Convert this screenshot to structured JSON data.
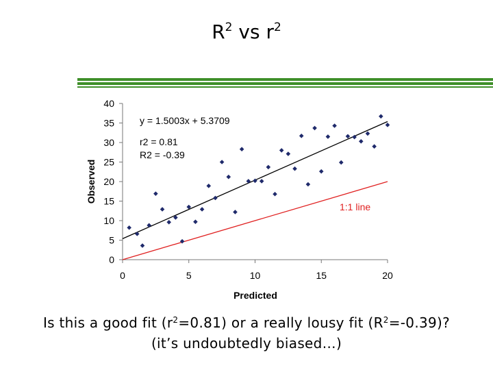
{
  "slide": {
    "title_r_upper": "R",
    "title_sup_1": "2",
    "title_vs": "vs",
    "title_r_lower": "r",
    "title_sup_2": "2",
    "caption1_a": "Is this a good fit (r",
    "caption1_sup_a": "2",
    "caption1_b": "=0.81) or a really lousy fit (R",
    "caption1_sup_b": "2",
    "caption1_c": "=-0.39)?",
    "caption2": "(it’s undoubtedly biased…)"
  },
  "colors": {
    "rule": "#3f8f2a",
    "points": "#1f2a6b",
    "regression_line": "#000000",
    "identity_line": "#e02020"
  },
  "chart_data": {
    "type": "scatter",
    "title": "",
    "xlabel": "Predicted",
    "ylabel": "Observed",
    "xlim": [
      0,
      20
    ],
    "ylim": [
      0,
      40
    ],
    "xticks": [
      0,
      5,
      10,
      15,
      20
    ],
    "yticks": [
      0,
      5,
      10,
      15,
      20,
      25,
      30,
      35,
      40
    ],
    "grid": false,
    "points": [
      {
        "x": 0.5,
        "y": 8.2
      },
      {
        "x": 1.1,
        "y": 6.6
      },
      {
        "x": 1.5,
        "y": 3.6
      },
      {
        "x": 2.0,
        "y": 8.8
      },
      {
        "x": 2.5,
        "y": 16.9
      },
      {
        "x": 3.0,
        "y": 12.9
      },
      {
        "x": 3.5,
        "y": 9.6
      },
      {
        "x": 4.0,
        "y": 10.8
      },
      {
        "x": 4.5,
        "y": 4.7
      },
      {
        "x": 5.0,
        "y": 13.5
      },
      {
        "x": 5.5,
        "y": 9.7
      },
      {
        "x": 6.0,
        "y": 12.9
      },
      {
        "x": 6.5,
        "y": 18.9
      },
      {
        "x": 7.0,
        "y": 15.8
      },
      {
        "x": 7.5,
        "y": 25.0
      },
      {
        "x": 8.0,
        "y": 21.2
      },
      {
        "x": 8.5,
        "y": 12.2
      },
      {
        "x": 9.0,
        "y": 28.3
      },
      {
        "x": 9.5,
        "y": 20.1
      },
      {
        "x": 10.0,
        "y": 20.2
      },
      {
        "x": 10.5,
        "y": 20.1
      },
      {
        "x": 11.0,
        "y": 23.7
      },
      {
        "x": 11.5,
        "y": 16.8
      },
      {
        "x": 12.0,
        "y": 28.0
      },
      {
        "x": 12.5,
        "y": 27.1
      },
      {
        "x": 13.0,
        "y": 23.3
      },
      {
        "x": 13.5,
        "y": 31.7
      },
      {
        "x": 14.0,
        "y": 19.3
      },
      {
        "x": 14.5,
        "y": 33.7
      },
      {
        "x": 15.0,
        "y": 22.6
      },
      {
        "x": 15.5,
        "y": 31.5
      },
      {
        "x": 16.0,
        "y": 34.3
      },
      {
        "x": 16.5,
        "y": 24.9
      },
      {
        "x": 17.0,
        "y": 31.6
      },
      {
        "x": 17.5,
        "y": 31.4
      },
      {
        "x": 18.0,
        "y": 30.3
      },
      {
        "x": 18.5,
        "y": 32.3
      },
      {
        "x": 19.0,
        "y": 29.0
      },
      {
        "x": 19.5,
        "y": 36.7
      },
      {
        "x": 20.0,
        "y": 34.5
      }
    ],
    "regression": {
      "slope": 1.5003,
      "intercept": 5.3709,
      "label": "y = 1.5003x + 5.3709"
    },
    "identity_line": {
      "slope": 1,
      "intercept": 0,
      "label": "1:1 line"
    },
    "annotations": [
      "r2 = 0.81",
      "R2 = -0.39"
    ]
  }
}
